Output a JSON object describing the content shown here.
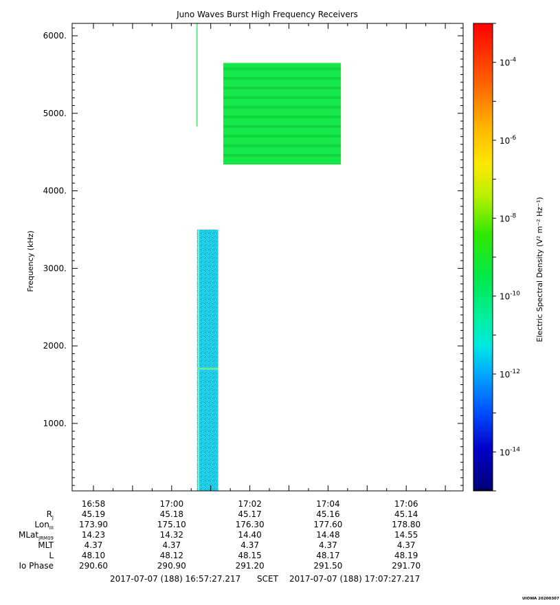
{
  "chart_data": {
    "type": "heatmap",
    "title": "Juno Waves Burst High Frequency Receivers",
    "ylabel": "Frequency (kHz)",
    "y_ticks": [
      1000,
      2000,
      3000,
      4000,
      5000,
      6000
    ],
    "y_tick_labels": [
      "1000.",
      "2000.",
      "3000.",
      "4000.",
      "5000.",
      "6000."
    ],
    "ylim": [
      130,
      6160
    ],
    "x_ticks": [
      "16:58",
      "17:00",
      "17:02",
      "17:04",
      "17:06"
    ],
    "x_tick_minutes": [
      58,
      60,
      62,
      64,
      66
    ],
    "xlim_minutes": [
      57.455,
      67.455
    ],
    "colorbar": {
      "label": "Electric Spectral Density (V² m⁻² Hz⁻¹)",
      "scale": "log",
      "range_exponent": [
        -15,
        -3
      ],
      "ticks": [
        {
          "base": "10",
          "exp": "-4",
          "value": -4
        },
        {
          "base": "10",
          "exp": "-6",
          "value": -6
        },
        {
          "base": "10",
          "exp": "-8",
          "value": -8
        },
        {
          "base": "10",
          "exp": "-10",
          "value": -10
        },
        {
          "base": "10",
          "exp": "-12",
          "value": -12
        },
        {
          "base": "10",
          "exp": "-14",
          "value": -14
        }
      ]
    },
    "blocks": [
      {
        "t_start": 60.64,
        "t_end": 60.66,
        "f_low": 4830,
        "f_high": 6160,
        "log_density": -9.7
      },
      {
        "t_start": 61.32,
        "t_end": 64.33,
        "f_low": 4340,
        "f_high": 5650,
        "log_density": -9.6
      },
      {
        "t_start": 60.65,
        "t_end": 61.19,
        "f_low": 130,
        "f_high": 3500,
        "log_density": -11.8
      }
    ],
    "ephemeris": {
      "rows": [
        {
          "label": "R",
          "sub": "J",
          "values": [
            "45.19",
            "45.18",
            "45.17",
            "45.16",
            "45.14"
          ]
        },
        {
          "label": "Lon",
          "sub": "III",
          "values": [
            "173.90",
            "175.10",
            "176.30",
            "177.60",
            "178.80"
          ]
        },
        {
          "label": "MLat",
          "sub": "JRM09",
          "values": [
            "14.23",
            "14.32",
            "14.40",
            "14.48",
            "14.55"
          ]
        },
        {
          "label": "MLT",
          "sub": "",
          "values": [
            "4.37",
            "4.37",
            "4.37",
            "4.37",
            "4.37"
          ]
        },
        {
          "label": "L",
          "sub": "",
          "values": [
            "48.10",
            "48.12",
            "48.15",
            "48.17",
            "48.19"
          ]
        },
        {
          "label": "Io Phase",
          "sub": "",
          "values": [
            "290.60",
            "290.90",
            "291.20",
            "291.50",
            "291.70"
          ]
        }
      ]
    },
    "time_range": {
      "start": "2017-07-07 (188) 16:57:27.217",
      "label": "SCET",
      "end": "2017-07-07 (188) 17:07:27.217"
    },
    "credit": "UIOWA 20200307"
  }
}
